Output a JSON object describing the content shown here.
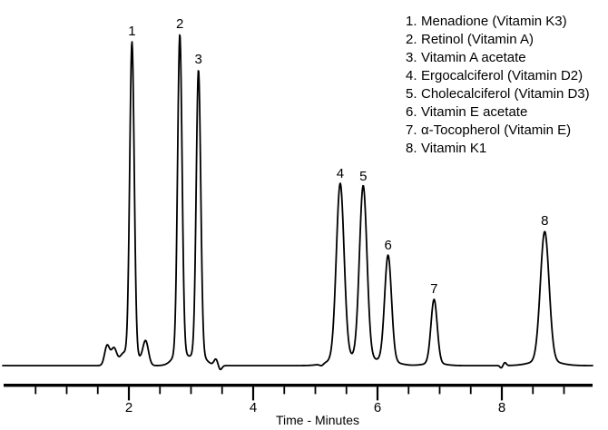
{
  "figure": {
    "background_color": "#ffffff",
    "line_color": "#000000",
    "text_color": "#000000"
  },
  "x_axis": {
    "title": "Time - Minutes",
    "major_ticks_min": [
      2,
      4,
      6,
      8
    ],
    "major_tick_labels": [
      "2",
      "4",
      "6",
      "8"
    ],
    "minor_tick_step_min": 0.5,
    "tick_range_min": [
      0.5,
      9.0
    ]
  },
  "legend": {
    "items": [
      {
        "number": "1.",
        "label": "Menadione (Vitamin K3)"
      },
      {
        "number": "2.",
        "label": "Retinol (Vitamin A)"
      },
      {
        "number": "3.",
        "label": "Vitamin A acetate"
      },
      {
        "number": "4.",
        "label": "Ergocalciferol (Vitamin D2)"
      },
      {
        "number": "5.",
        "label": "Cholecalciferol (Vitamin D3)"
      },
      {
        "number": "6.",
        "label": "Vitamin E acetate"
      },
      {
        "number": "7.",
        "label": "α-Tocopherol (Vitamin E)"
      },
      {
        "number": "8.",
        "label": "Vitamin K1"
      }
    ]
  },
  "chart_data": {
    "type": "line",
    "title": "",
    "xlabel": "Time - Minutes",
    "ylabel": "",
    "x_range_minutes": [
      0,
      9.45
    ],
    "grid": false,
    "legend_position": "top-right",
    "peaks": [
      {
        "peak": 1,
        "compound": "Menadione (Vitamin K3)",
        "retention_min": 2.05,
        "rel_height": 0.978,
        "sigma_min": 0.036
      },
      {
        "peak": 2,
        "compound": "Retinol (Vitamin A)",
        "retention_min": 2.82,
        "rel_height": 1.0,
        "sigma_min": 0.036
      },
      {
        "peak": 3,
        "compound": "Vitamin A acetate",
        "retention_min": 3.12,
        "rel_height": 0.893,
        "sigma_min": 0.036
      },
      {
        "peak": 4,
        "compound": "Ergocalciferol (Vitamin D2)",
        "retention_min": 5.4,
        "rel_height": 0.548,
        "sigma_min": 0.062
      },
      {
        "peak": 5,
        "compound": "Cholecalciferol (Vitamin D3)",
        "retention_min": 5.77,
        "rel_height": 0.54,
        "sigma_min": 0.06
      },
      {
        "peak": 6,
        "compound": "Vitamin E acetate",
        "retention_min": 6.17,
        "rel_height": 0.332,
        "sigma_min": 0.055
      },
      {
        "peak": 7,
        "compound": "α-Tocopherol (Vitamin E)",
        "retention_min": 6.91,
        "rel_height": 0.2,
        "sigma_min": 0.05
      },
      {
        "peak": 8,
        "compound": "Vitamin K1",
        "retention_min": 8.69,
        "rel_height": 0.405,
        "sigma_min": 0.07
      }
    ],
    "baseline_features": [
      {
        "t_min": 1.65,
        "rel_height": 0.06,
        "sigma_min": 0.04
      },
      {
        "t_min": 1.76,
        "rel_height": 0.052,
        "sigma_min": 0.045
      },
      {
        "t_min": 1.9,
        "rel_height": 0.022,
        "sigma_min": 0.05
      },
      {
        "t_min": 2.27,
        "rel_height": 0.071,
        "sigma_min": 0.045
      },
      {
        "t_min": 3.4,
        "rel_height": 0.019,
        "sigma_min": 0.03
      },
      {
        "t_min": 3.47,
        "rel_height": -0.013,
        "sigma_min": 0.028
      },
      {
        "t_min": 5.1,
        "rel_height": -0.006,
        "sigma_min": 0.03
      },
      {
        "t_min": 7.99,
        "rel_height": -0.007,
        "sigma_min": 0.02
      },
      {
        "t_min": 8.05,
        "rel_height": 0.009,
        "sigma_min": 0.022
      }
    ]
  }
}
